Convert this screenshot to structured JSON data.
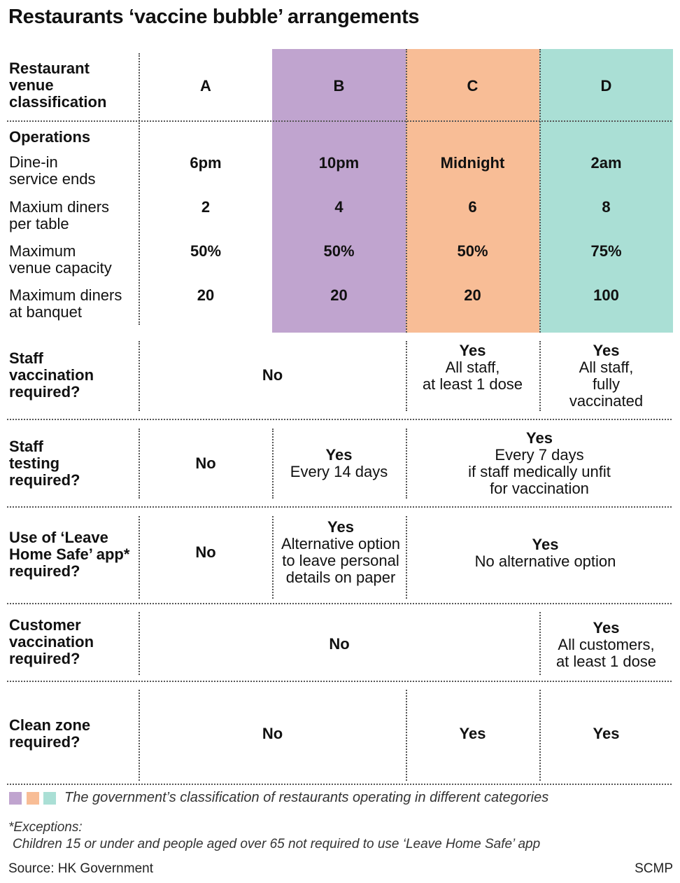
{
  "title": "Restaurants ‘vaccine bubble’ arrangements",
  "colors": {
    "B": "#c0a4cf",
    "C": "#f8bd96",
    "D": "#aadfd5"
  },
  "header": {
    "row_label": [
      "Restaurant",
      "venue",
      "classification"
    ],
    "classes": [
      "A",
      "B",
      "C",
      "D"
    ]
  },
  "operations": {
    "label": "Operations",
    "rows": [
      {
        "label": [
          "Dine-in",
          "service ends"
        ],
        "values": [
          "6pm",
          "10pm",
          "Midnight",
          "2am"
        ]
      },
      {
        "label": [
          "Maxium diners",
          "per table"
        ],
        "values": [
          "2",
          "4",
          "6",
          "8"
        ]
      },
      {
        "label": [
          "Maximum",
          "venue capacity"
        ],
        "values": [
          "50%",
          "50%",
          "50%",
          "75%"
        ]
      },
      {
        "label": [
          "Maximum diners",
          "at banquet"
        ],
        "values": [
          "20",
          "20",
          "20",
          "100"
        ]
      }
    ]
  },
  "staff_vaccination": {
    "label": [
      "Staff",
      "vaccination",
      "required?"
    ],
    "AB": "No",
    "C": {
      "head": "Yes",
      "detail": [
        "All staff,",
        "at least 1 dose"
      ]
    },
    "D": {
      "head": "Yes",
      "detail": [
        "All staff,",
        "fully",
        "vaccinated"
      ]
    }
  },
  "staff_testing": {
    "label": [
      "Staff",
      "testing",
      "required?"
    ],
    "A": "No",
    "B": {
      "head": "Yes",
      "detail": [
        "Every 14 days"
      ]
    },
    "CD": {
      "head": "Yes",
      "detail": [
        "Every 7 days",
        "if staff medically unfit",
        "for vaccination"
      ]
    }
  },
  "leave_home_safe": {
    "label": [
      "Use of ‘Leave",
      "Home Safe’ app*",
      "required?"
    ],
    "A": "No",
    "B": {
      "head": "Yes",
      "detail": [
        "Alternative option",
        "to leave personal",
        "details on paper"
      ]
    },
    "CD": {
      "head": "Yes",
      "detail": [
        "No alternative option"
      ]
    }
  },
  "customer_vaccination": {
    "label": [
      "Customer",
      "vaccination",
      "required?"
    ],
    "ABC": "No",
    "D": {
      "head": "Yes",
      "detail": [
        "All customers,",
        "at least 1 dose"
      ]
    }
  },
  "clean_zone": {
    "label": [
      "Clean zone",
      "required?"
    ],
    "AB": "No",
    "C": "Yes",
    "D": "Yes"
  },
  "legend": "The government’s classification of restaurants operating in different categories",
  "exceptions": [
    "*Exceptions:",
    "Children 15 or under and people aged over 65 not required to use ‘Leave Home Safe’ app"
  ],
  "source": "Source: HK Government",
  "credit": "SCMP"
}
